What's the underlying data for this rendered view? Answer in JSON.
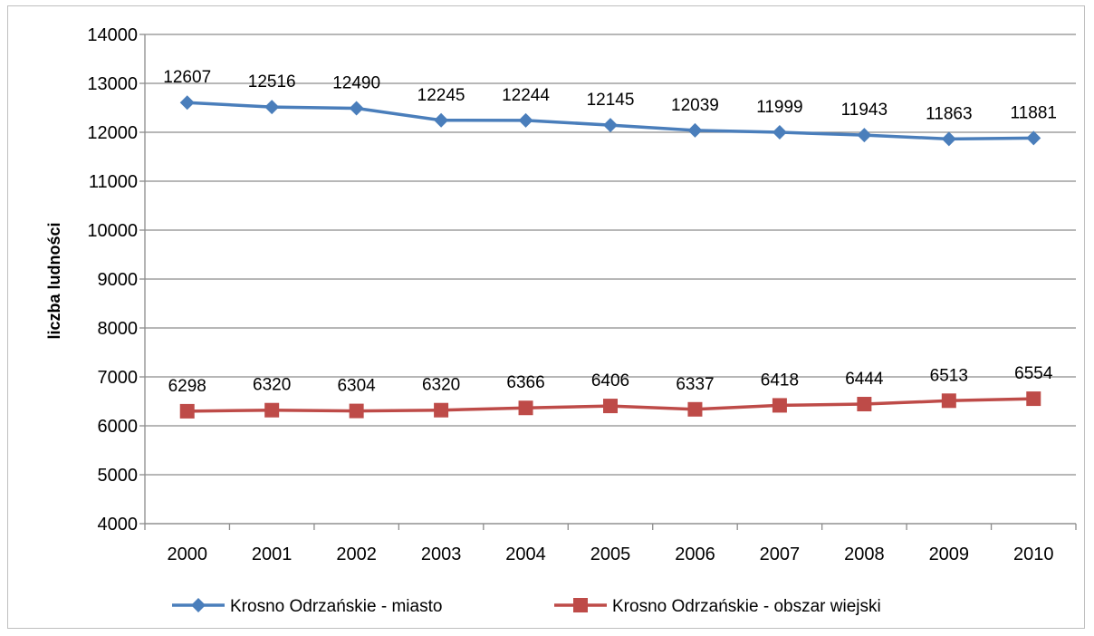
{
  "chart_data": {
    "type": "line",
    "title": "",
    "xlabel": "",
    "ylabel": "liczba ludności",
    "ylim": [
      4000,
      14000
    ],
    "ystep": 1000,
    "grid": true,
    "legend_position": "bottom",
    "x": [
      "2000",
      "2001",
      "2002",
      "2003",
      "2004",
      "2005",
      "2006",
      "2007",
      "2008",
      "2009",
      "2010"
    ],
    "series": [
      {
        "name": "Krosno Odrzańskie - miasto",
        "color": "#4a7ebb",
        "marker": "diamond",
        "values": [
          12607,
          12516,
          12490,
          12245,
          12244,
          12145,
          12039,
          11999,
          11943,
          11863,
          11881
        ]
      },
      {
        "name": "Krosno Odrzańskie - obszar wiejski",
        "color": "#be4b48",
        "marker": "square",
        "values": [
          6298,
          6320,
          6304,
          6320,
          6366,
          6406,
          6337,
          6418,
          6444,
          6513,
          6554
        ]
      }
    ]
  }
}
